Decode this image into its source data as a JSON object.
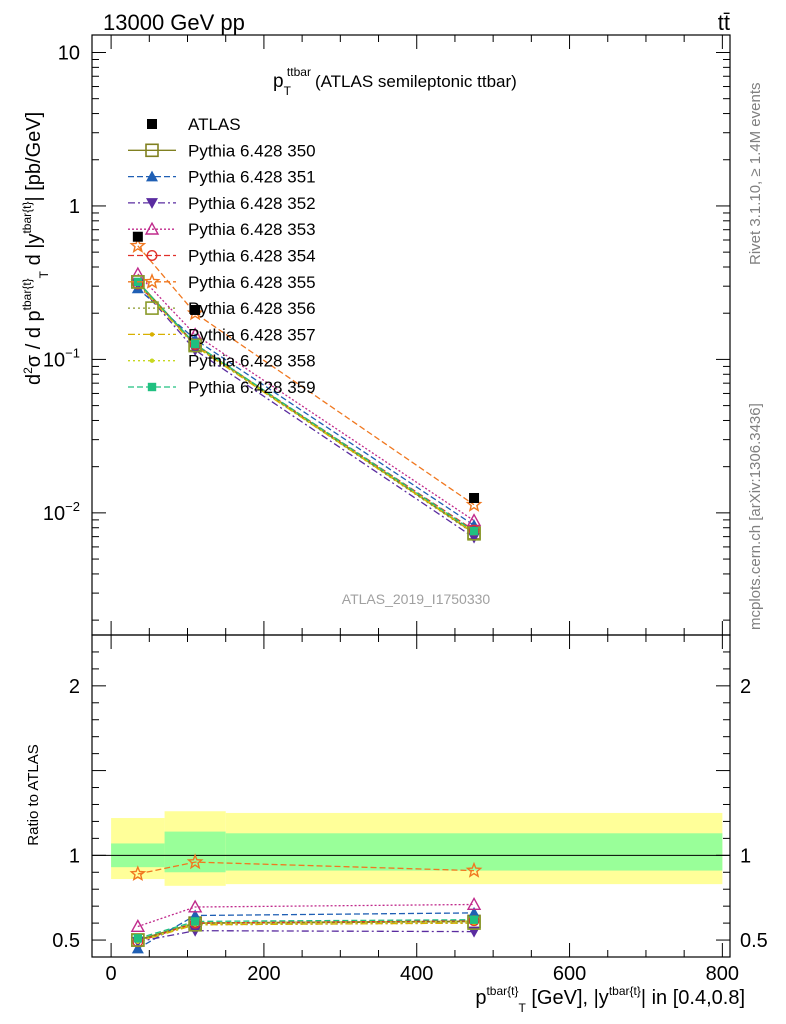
{
  "header": {
    "left": "13000 GeV pp",
    "right": "tt̄"
  },
  "title": {
    "main": "p",
    "sub": "T",
    "sup": "ttbar",
    "rest": "(ATLAS semileptonic ttbar)"
  },
  "side_labels": {
    "rivet": "Rivet 3.1.10, ≥ 1.4M events",
    "mcplots": "mcplots.cern.ch [arXiv:1306.3436]"
  },
  "watermark": "ATLAS_2019_I1750330",
  "ylabel_top": "d²σ / d p^tbar{t}_T d |y^tbar{t}| [pb/GeV]",
  "ylabel_bottom": "Ratio to ATLAS",
  "xlabel": "p^tbar{t}_T [GeV], |y^tbar{t}| in [0.4,0.8]",
  "chart_data": {
    "type": "line",
    "x": [
      35,
      110,
      475
    ],
    "xlim": [
      -25,
      810
    ],
    "top": {
      "yscale": "log",
      "ylim": [
        0.0016,
        13
      ],
      "yticks": [
        {
          "v": 10,
          "base": "10",
          "exp": ""
        },
        {
          "v": 1,
          "base": "1",
          "exp": ""
        },
        {
          "v": 0.1,
          "base": "10",
          "exp": "−1"
        },
        {
          "v": 0.01,
          "base": "10",
          "exp": "−2"
        }
      ],
      "data": {
        "name": "ATLAS",
        "values": [
          0.63,
          0.21,
          0.0125
        ]
      }
    },
    "bottom": {
      "ylim": [
        0.4,
        2.3
      ],
      "yticks": [
        0.5,
        1,
        2
      ],
      "bands": [
        {
          "x0": 0,
          "x1": 70,
          "yellow": [
            0.86,
            1.22
          ],
          "green": [
            0.93,
            1.07
          ]
        },
        {
          "x0": 70,
          "x1": 150,
          "yellow": [
            0.82,
            1.26
          ],
          "green": [
            0.9,
            1.14
          ]
        },
        {
          "x0": 150,
          "x1": 800,
          "yellow": [
            0.83,
            1.25
          ],
          "green": [
            0.91,
            1.13
          ]
        }
      ]
    },
    "xticks": [
      0,
      200,
      400,
      600,
      800
    ],
    "series": [
      {
        "name": "Pythia 6.428 350",
        "color": "#808020",
        "marker": "square-open",
        "dash": "",
        "values": [
          0.32,
          0.125,
          0.0074
        ],
        "ratio": [
          0.5,
          0.6,
          0.61
        ]
      },
      {
        "name": "Pythia 6.428 351",
        "color": "#1f5fb4",
        "marker": "triangle-up",
        "dash": "6,3",
        "values": [
          0.29,
          0.135,
          0.0083
        ],
        "ratio": [
          0.45,
          0.645,
          0.66
        ]
      },
      {
        "name": "Pythia 6.428 352",
        "color": "#5a2ca0",
        "marker": "triangle-down",
        "dash": "7,3,2,3",
        "values": [
          0.31,
          0.115,
          0.0069
        ],
        "ratio": [
          0.49,
          0.555,
          0.55
        ]
      },
      {
        "name": "Pythia 6.428 353",
        "color": "#c02a8c",
        "marker": "triangle-open",
        "dash": "2,2",
        "values": [
          0.36,
          0.145,
          0.0089
        ],
        "ratio": [
          0.58,
          0.695,
          0.71
        ]
      },
      {
        "name": "Pythia 6.428 354",
        "color": "#e0302a",
        "marker": "circle-open",
        "dash": "6,3",
        "values": [
          0.31,
          0.125,
          0.0077
        ],
        "ratio": [
          0.49,
          0.6,
          0.615
        ]
      },
      {
        "name": "Pythia 6.428 355",
        "color": "#f07820",
        "marker": "star-open",
        "dash": "6,3",
        "values": [
          0.55,
          0.2,
          0.0113
        ],
        "ratio": [
          0.89,
          0.96,
          0.91
        ]
      },
      {
        "name": "Pythia 6.428 356",
        "color": "#8a9a2a",
        "marker": "square-open",
        "dash": "2,3",
        "values": [
          0.32,
          0.123,
          0.0073
        ],
        "ratio": [
          0.5,
          0.59,
          0.6
        ]
      },
      {
        "name": "Pythia 6.428 357",
        "color": "#d8b000",
        "marker": "dot",
        "dash": "7,3,2,3",
        "values": [
          0.31,
          0.122,
          0.0074
        ],
        "ratio": [
          0.49,
          0.59,
          0.6
        ]
      },
      {
        "name": "Pythia 6.428 358",
        "color": "#c8d820",
        "marker": "dot",
        "dash": "2,3",
        "values": [
          0.31,
          0.124,
          0.0075
        ],
        "ratio": [
          0.49,
          0.6,
          0.61
        ]
      },
      {
        "name": "Pythia 6.428 359",
        "color": "#20c080",
        "marker": "square-filled",
        "dash": "6,3",
        "values": [
          0.32,
          0.126,
          0.0076
        ],
        "ratio": [
          0.51,
          0.61,
          0.62
        ]
      }
    ]
  }
}
